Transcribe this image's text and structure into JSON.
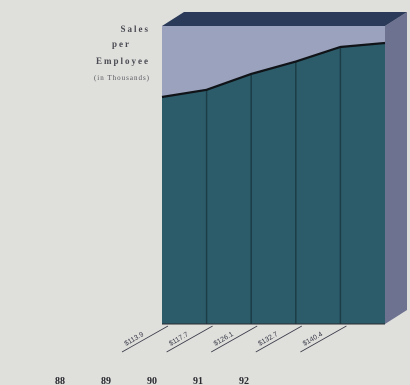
{
  "chart_data": {
    "type": "bar",
    "title_lines": [
      "Sales",
      "per",
      "Employee"
    ],
    "subtitle": "(in Thousands)",
    "categories": [
      "88",
      "89",
      "90",
      "91",
      "92"
    ],
    "category_labels": [
      "88",
      "89",
      "90",
      "91",
      "92"
    ],
    "values": [
      113.9,
      117.7,
      126.1,
      132.7,
      140.4
    ],
    "value_labels": [
      "$113.9",
      "$117.7",
      "$126.1",
      "$132.7",
      "$140.4"
    ],
    "ylim": [
      0,
      160
    ],
    "grid": false,
    "legend": "none",
    "colors": {
      "bar": "#2c5c6a",
      "bar_divider": "#1c3d47",
      "box_fill": "#9aa2bd",
      "box_top": "#2b3a58",
      "box_side": "#6d7290",
      "background": "#dfe0dc"
    }
  }
}
